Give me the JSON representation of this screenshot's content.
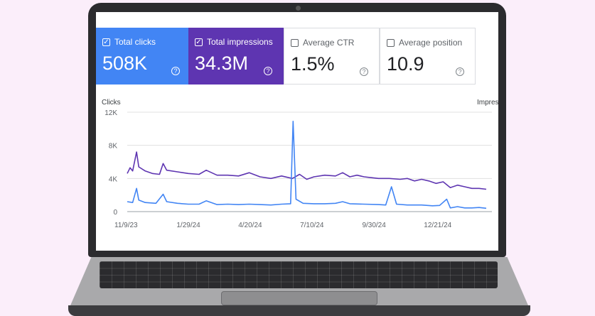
{
  "cards": [
    {
      "label": "Total clicks",
      "value": "508K",
      "checked": true,
      "color": "#4285f4"
    },
    {
      "label": "Total impressions",
      "value": "34.3M",
      "checked": true,
      "color": "#5e35b1"
    },
    {
      "label": "Average CTR",
      "value": "1.5%",
      "checked": false,
      "color": "#ffffff"
    },
    {
      "label": "Average position",
      "value": "10.9",
      "checked": false,
      "color": "#ffffff"
    }
  ],
  "icons": {
    "checkbox": "checkbox-icon",
    "help": "help-circle-icon"
  },
  "chart_data": {
    "type": "line",
    "left_axis_title": "Clicks",
    "right_axis_title": "Impres",
    "y_ticks": [
      "12K",
      "8K",
      "4K",
      "0"
    ],
    "ylim": [
      0,
      12000
    ],
    "x_ticks": [
      "11/9/23",
      "1/29/24",
      "4/20/24",
      "7/10/24",
      "9/30/24",
      "12/21/24"
    ],
    "x_range": [
      "2023-11-09",
      "2025-02-22"
    ],
    "grid": true,
    "series": [
      {
        "name": "Total impressions",
        "color": "#5e35b1",
        "points": [
          [
            0,
            4600
          ],
          [
            0.008,
            5300
          ],
          [
            0.015,
            4900
          ],
          [
            0.026,
            7200
          ],
          [
            0.032,
            5400
          ],
          [
            0.05,
            4900
          ],
          [
            0.07,
            4600
          ],
          [
            0.09,
            4500
          ],
          [
            0.1,
            5800
          ],
          [
            0.11,
            5000
          ],
          [
            0.14,
            4800
          ],
          [
            0.17,
            4600
          ],
          [
            0.2,
            4500
          ],
          [
            0.22,
            5000
          ],
          [
            0.25,
            4400
          ],
          [
            0.28,
            4400
          ],
          [
            0.31,
            4300
          ],
          [
            0.34,
            4700
          ],
          [
            0.37,
            4200
          ],
          [
            0.4,
            4000
          ],
          [
            0.43,
            4300
          ],
          [
            0.46,
            4000
          ],
          [
            0.48,
            4500
          ],
          [
            0.5,
            3900
          ],
          [
            0.52,
            4200
          ],
          [
            0.55,
            4400
          ],
          [
            0.58,
            4300
          ],
          [
            0.6,
            4700
          ],
          [
            0.62,
            4200
          ],
          [
            0.64,
            4400
          ],
          [
            0.66,
            4200
          ],
          [
            0.68,
            4100
          ],
          [
            0.7,
            4000
          ],
          [
            0.73,
            4000
          ],
          [
            0.76,
            3900
          ],
          [
            0.78,
            4000
          ],
          [
            0.8,
            3700
          ],
          [
            0.82,
            3900
          ],
          [
            0.84,
            3700
          ],
          [
            0.86,
            3400
          ],
          [
            0.88,
            3600
          ],
          [
            0.9,
            2900
          ],
          [
            0.92,
            3200
          ],
          [
            0.94,
            3000
          ],
          [
            0.96,
            2800
          ],
          [
            0.98,
            2800
          ],
          [
            1,
            2700
          ]
        ]
      },
      {
        "name": "Total clicks",
        "color": "#4285f4",
        "points": [
          [
            0,
            1200
          ],
          [
            0.015,
            1100
          ],
          [
            0.026,
            2800
          ],
          [
            0.032,
            1400
          ],
          [
            0.05,
            1100
          ],
          [
            0.08,
            1000
          ],
          [
            0.1,
            2100
          ],
          [
            0.11,
            1200
          ],
          [
            0.14,
            1000
          ],
          [
            0.17,
            900
          ],
          [
            0.2,
            900
          ],
          [
            0.22,
            1300
          ],
          [
            0.25,
            850
          ],
          [
            0.28,
            900
          ],
          [
            0.31,
            850
          ],
          [
            0.34,
            900
          ],
          [
            0.37,
            850
          ],
          [
            0.4,
            800
          ],
          [
            0.43,
            900
          ],
          [
            0.455,
            950
          ],
          [
            0.462,
            10900
          ],
          [
            0.47,
            1500
          ],
          [
            0.49,
            1000
          ],
          [
            0.52,
            950
          ],
          [
            0.55,
            950
          ],
          [
            0.58,
            1000
          ],
          [
            0.6,
            1200
          ],
          [
            0.62,
            950
          ],
          [
            0.66,
            900
          ],
          [
            0.7,
            850
          ],
          [
            0.72,
            800
          ],
          [
            0.736,
            3000
          ],
          [
            0.75,
            900
          ],
          [
            0.78,
            800
          ],
          [
            0.82,
            800
          ],
          [
            0.85,
            700
          ],
          [
            0.87,
            750
          ],
          [
            0.89,
            1500
          ],
          [
            0.9,
            450
          ],
          [
            0.92,
            600
          ],
          [
            0.94,
            450
          ],
          [
            0.96,
            450
          ],
          [
            0.98,
            500
          ],
          [
            1,
            400
          ]
        ]
      }
    ]
  }
}
